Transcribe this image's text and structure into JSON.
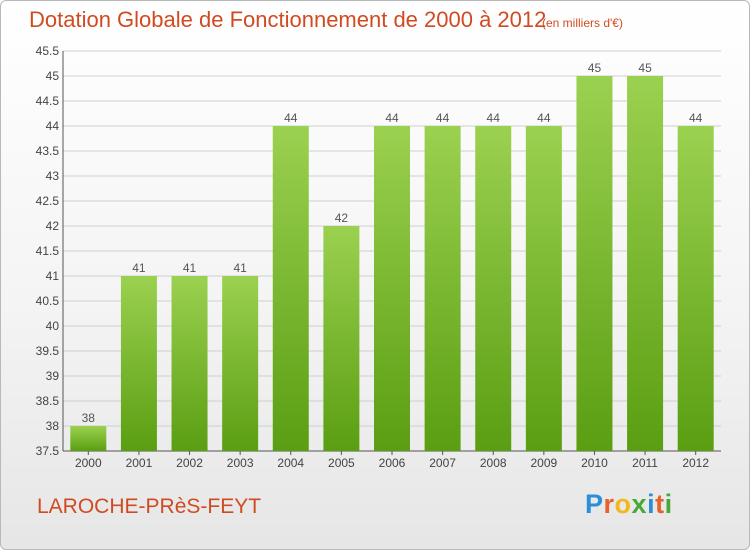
{
  "header": {
    "title": "Dotation Globale de Fonctionnement de 2000 à 2012",
    "unit": "(en milliers d'€)"
  },
  "footer": {
    "commune": "LAROCHE-PRèS-FEYT",
    "logo_letters": [
      "P",
      "r",
      "o",
      "x",
      "i",
      "t",
      "i"
    ],
    "logo_colors": [
      "#2a8fd6",
      "#e8602c",
      "#f0b81b",
      "#4aa83b",
      "#2a8fd6",
      "#e8602c",
      "#4aa83b"
    ]
  },
  "colors": {
    "bar_light": "#9bd150",
    "bar_dark": "#5a9e12",
    "grid": "#cfcfcf",
    "axis": "#555555"
  },
  "chart_data": {
    "type": "bar",
    "title": "Dotation Globale de Fonctionnement de 2000 à 2012",
    "categories": [
      "2000",
      "2001",
      "2002",
      "2003",
      "2004",
      "2005",
      "2006",
      "2007",
      "2008",
      "2009",
      "2010",
      "2011",
      "2012"
    ],
    "values": [
      38,
      41,
      41,
      41,
      44,
      42,
      44,
      44,
      44,
      44,
      45,
      45,
      44
    ],
    "xlabel": "",
    "ylabel": "",
    "ylim": [
      37.5,
      45.5
    ],
    "yticks": [
      "37.5",
      "38",
      "38.5",
      "39",
      "39.5",
      "40",
      "40.5",
      "41",
      "41.5",
      "42",
      "42.5",
      "43",
      "43.5",
      "44",
      "44.5",
      "45",
      "45.5"
    ],
    "grid": true,
    "data_labels": true
  }
}
